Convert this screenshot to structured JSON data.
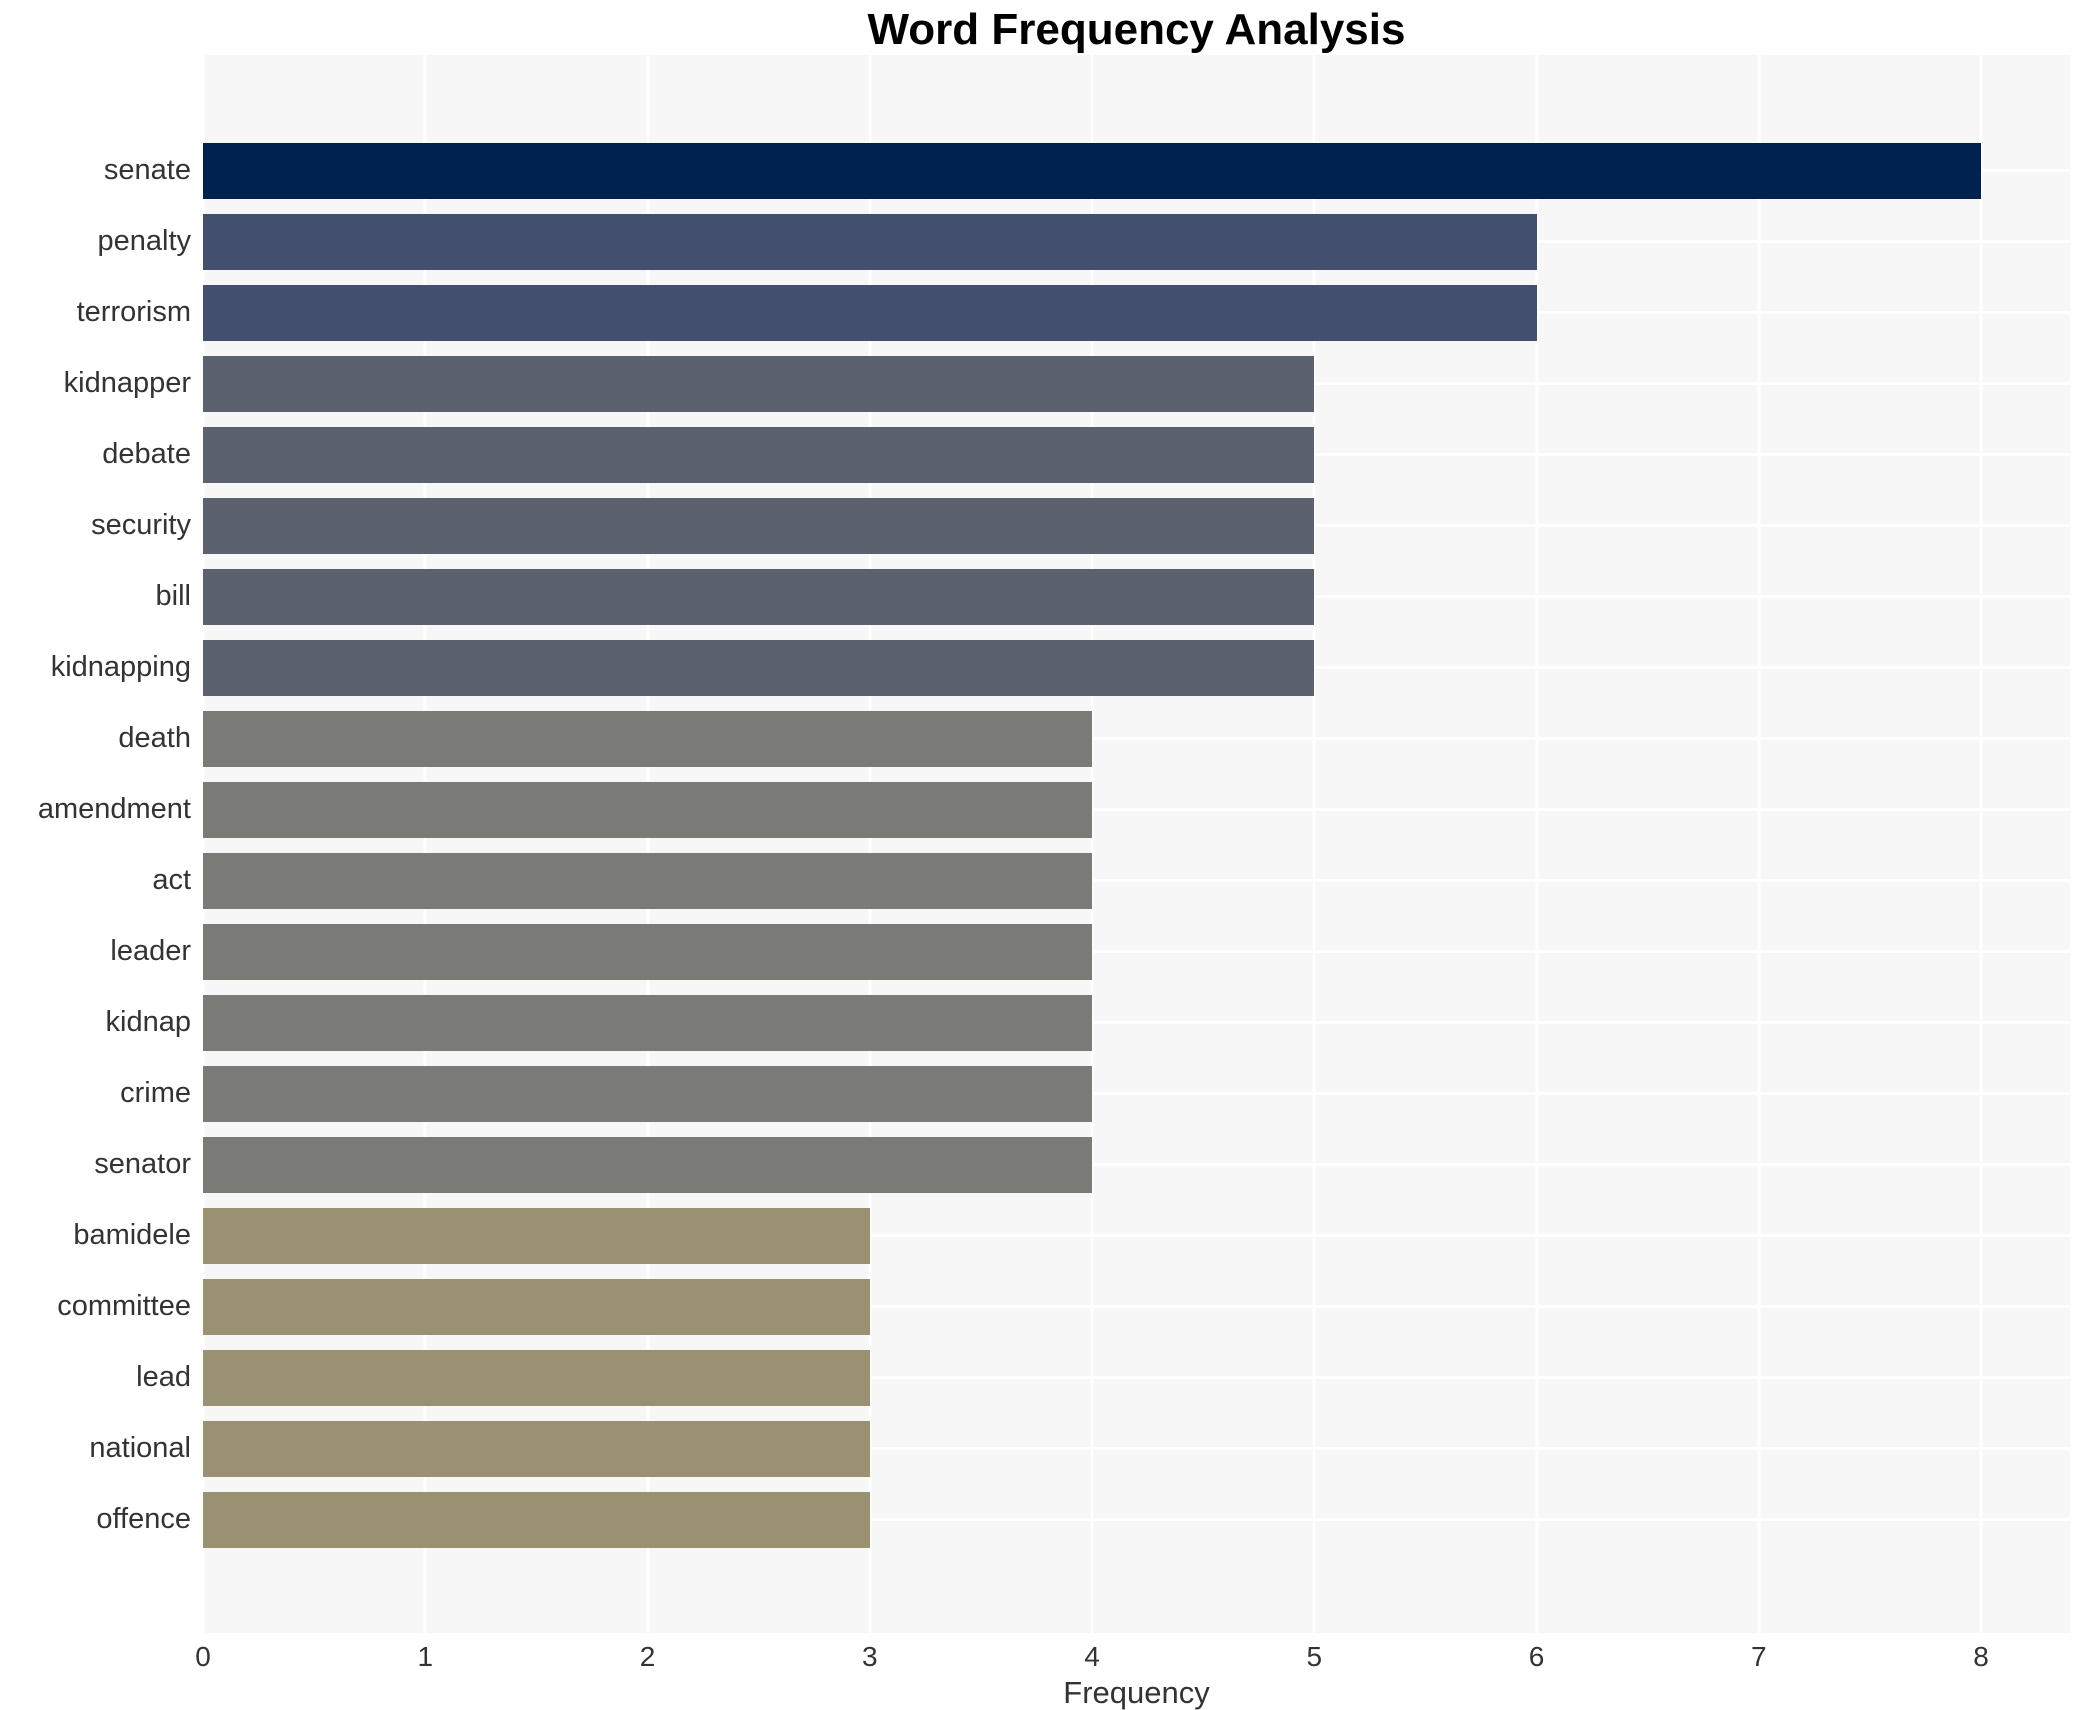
{
  "chart_data": {
    "type": "bar",
    "orientation": "horizontal",
    "title": "Word Frequency Analysis",
    "xlabel": "Frequency",
    "ylabel": "",
    "categories": [
      "senate",
      "penalty",
      "terrorism",
      "kidnapper",
      "debate",
      "security",
      "bill",
      "kidnapping",
      "death",
      "amendment",
      "act",
      "leader",
      "kidnap",
      "crime",
      "senator",
      "bamidele",
      "committee",
      "lead",
      "national",
      "offence"
    ],
    "values": [
      8,
      6,
      6,
      5,
      5,
      5,
      5,
      5,
      4,
      4,
      4,
      4,
      4,
      4,
      4,
      3,
      3,
      3,
      3,
      3
    ],
    "bar_colors": [
      "#00224e",
      "#434f6e",
      "#434f6e",
      "#5c6170",
      "#5c6170",
      "#5c6170",
      "#5c6170",
      "#5c6170",
      "#7a7a77",
      "#7a7a77",
      "#7a7a77",
      "#7a7a77",
      "#7a7a77",
      "#7a7a77",
      "#7a7a77",
      "#999171",
      "#999171",
      "#999171",
      "#999171",
      "#999171"
    ],
    "xlim": [
      0,
      8.4
    ],
    "xticks": [
      0,
      1,
      2,
      3,
      4,
      5,
      6,
      7,
      8
    ],
    "grid": true,
    "legend_position": "none"
  },
  "style": {
    "figure_bg": "#ffffff",
    "plot_bg": "#f7f7f8",
    "grid_color": "#ffffff",
    "text_color": "#333333",
    "title_color": "#000000"
  }
}
